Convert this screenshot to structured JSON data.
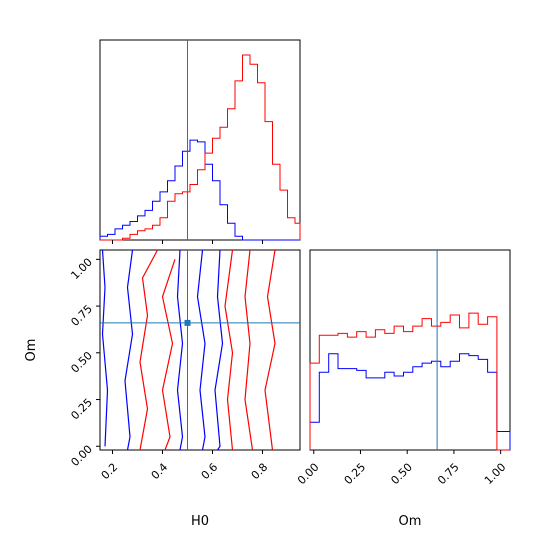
{
  "chart_data": [
    {
      "panel": "H0 marginal",
      "type": "histogram",
      "xlim": [
        0.15,
        0.95
      ],
      "ylim": [
        0,
        1
      ],
      "truth_x": 0.5,
      "bin_edges": [
        0.15,
        0.18,
        0.21,
        0.24,
        0.27,
        0.3,
        0.33,
        0.36,
        0.39,
        0.42,
        0.45,
        0.48,
        0.51,
        0.54,
        0.57,
        0.6,
        0.63,
        0.66,
        0.69,
        0.72,
        0.75,
        0.78,
        0.81,
        0.84,
        0.87,
        0.9,
        0.93,
        0.95
      ],
      "series": [
        {
          "color": "#0000ff",
          "values": [
            0.02,
            0.03,
            0.06,
            0.08,
            0.1,
            0.13,
            0.16,
            0.21,
            0.26,
            0.32,
            0.4,
            0.48,
            0.54,
            0.53,
            0.41,
            0.32,
            0.19,
            0.09,
            0.02,
            0.0,
            0.0,
            0.0,
            0.0,
            0.0,
            0.0,
            0.0,
            0.0
          ]
        },
        {
          "color": "#ff0000",
          "values": [
            0.0,
            0.0,
            0.0,
            0.01,
            0.03,
            0.05,
            0.06,
            0.08,
            0.12,
            0.21,
            0.25,
            0.26,
            0.3,
            0.38,
            0.47,
            0.55,
            0.61,
            0.71,
            0.86,
            1.0,
            0.95,
            0.85,
            0.64,
            0.41,
            0.27,
            0.12,
            0.09
          ]
        }
      ]
    },
    {
      "panel": "Om vs H0 contours",
      "type": "contour",
      "xlabel": "H0",
      "ylabel": "Om",
      "xlim": [
        0.15,
        0.95
      ],
      "ylim": [
        -0.02,
        1.05
      ],
      "xticks": [
        "0.2",
        "0.4",
        "0.6",
        "0.8"
      ],
      "xtick_values": [
        0.2,
        0.4,
        0.6,
        0.8
      ],
      "yticks": [
        "0.00",
        "0.25",
        "0.50",
        "0.75",
        "1.00"
      ],
      "ytick_values": [
        0.0,
        0.25,
        0.5,
        0.75,
        1.0
      ],
      "truth": {
        "x": 0.5,
        "y": 0.66
      },
      "series": [
        {
          "color": "#0000ff",
          "contours": [
            [
              [
                0.16,
                1.05
              ],
              [
                0.17,
                0.85
              ],
              [
                0.16,
                0.6
              ],
              [
                0.18,
                0.3
              ],
              [
                0.17,
                0.0
              ]
            ],
            [
              [
                0.28,
                1.05
              ],
              [
                0.26,
                0.85
              ],
              [
                0.28,
                0.6
              ],
              [
                0.25,
                0.35
              ],
              [
                0.27,
                0.05
              ],
              [
                0.26,
                -0.02
              ]
            ],
            [
              [
                0.47,
                1.05
              ],
              [
                0.46,
                0.8
              ],
              [
                0.48,
                0.55
              ],
              [
                0.46,
                0.3
              ],
              [
                0.48,
                0.05
              ],
              [
                0.47,
                -0.02
              ]
            ],
            [
              [
                0.56,
                1.05
              ],
              [
                0.54,
                0.8
              ],
              [
                0.57,
                0.55
              ],
              [
                0.55,
                0.3
              ],
              [
                0.57,
                0.05
              ],
              [
                0.56,
                -0.02
              ]
            ],
            [
              [
                0.63,
                1.05
              ],
              [
                0.62,
                0.8
              ],
              [
                0.64,
                0.55
              ],
              [
                0.61,
                0.3
              ],
              [
                0.63,
                0.0
              ],
              [
                0.62,
                -0.02
              ]
            ]
          ]
        },
        {
          "color": "#ff0000",
          "contours": [
            [
              [
                0.38,
                1.05
              ],
              [
                0.32,
                0.9
              ],
              [
                0.34,
                0.7
              ],
              [
                0.31,
                0.45
              ],
              [
                0.34,
                0.2
              ],
              [
                0.31,
                -0.02
              ]
            ],
            [
              [
                0.45,
                1.0
              ],
              [
                0.4,
                0.8
              ],
              [
                0.44,
                0.55
              ],
              [
                0.4,
                0.3
              ],
              [
                0.43,
                0.05
              ],
              [
                0.41,
                -0.02
              ]
            ],
            [
              [
                0.68,
                1.05
              ],
              [
                0.65,
                0.75
              ],
              [
                0.68,
                0.5
              ],
              [
                0.66,
                0.25
              ],
              [
                0.68,
                -0.02
              ]
            ],
            [
              [
                0.75,
                1.05
              ],
              [
                0.73,
                0.8
              ],
              [
                0.75,
                0.55
              ],
              [
                0.73,
                0.25
              ],
              [
                0.76,
                -0.02
              ]
            ],
            [
              [
                0.85,
                1.05
              ],
              [
                0.82,
                0.8
              ],
              [
                0.85,
                0.55
              ],
              [
                0.81,
                0.3
              ],
              [
                0.84,
                -0.02
              ]
            ]
          ]
        }
      ]
    },
    {
      "panel": "Om marginal",
      "type": "histogram",
      "xlabel": "Om",
      "xlim": [
        -0.02,
        1.05
      ],
      "ylim": [
        0,
        1
      ],
      "xticks": [
        "0.00",
        "0.25",
        "0.50",
        "0.75",
        "1.00"
      ],
      "xtick_values": [
        0.0,
        0.25,
        0.5,
        0.75,
        1.0
      ],
      "truth_x": 0.66,
      "bin_edges": [
        -0.02,
        0.03,
        0.08,
        0.13,
        0.18,
        0.23,
        0.28,
        0.33,
        0.38,
        0.43,
        0.48,
        0.53,
        0.58,
        0.63,
        0.68,
        0.73,
        0.78,
        0.83,
        0.88,
        0.93,
        0.98,
        1.05
      ],
      "series": [
        {
          "color": "#0000ff",
          "values": [
            0.15,
            0.42,
            0.52,
            0.44,
            0.44,
            0.43,
            0.39,
            0.39,
            0.42,
            0.4,
            0.42,
            0.45,
            0.47,
            0.48,
            0.45,
            0.48,
            0.52,
            0.51,
            0.49,
            0.42,
            0.1
          ]
        },
        {
          "color": "#ff0000",
          "values": [
            0.47,
            0.62,
            0.62,
            0.63,
            0.61,
            0.64,
            0.61,
            0.65,
            0.63,
            0.67,
            0.64,
            0.67,
            0.71,
            0.67,
            0.69,
            0.73,
            0.66,
            0.74,
            0.68,
            0.72,
            0.0
          ]
        }
      ]
    }
  ]
}
